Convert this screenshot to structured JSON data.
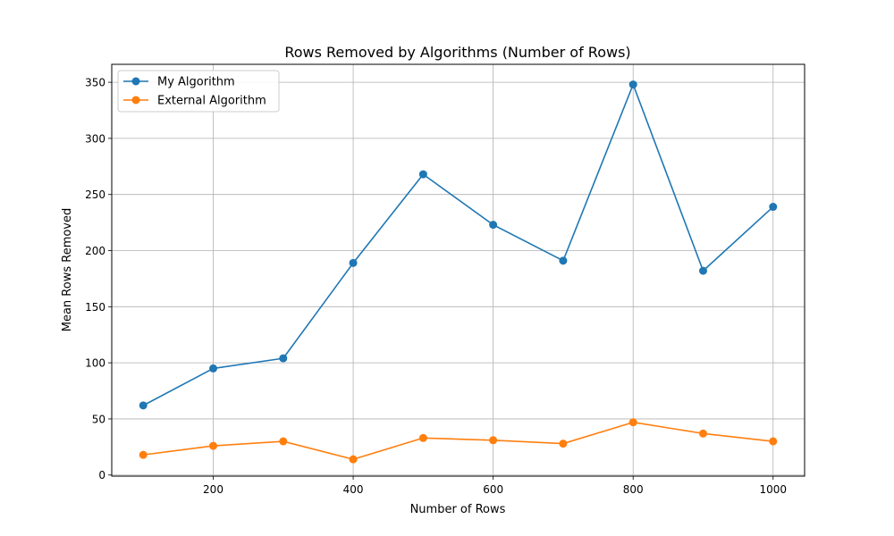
{
  "chart_data": {
    "type": "line",
    "title": "Rows Removed by Algorithms (Number of Rows)",
    "xlabel": "Number of Rows",
    "ylabel": "Mean Rows Removed",
    "x": [
      100,
      200,
      300,
      400,
      500,
      600,
      700,
      800,
      900,
      1000
    ],
    "xlim": [
      55,
      1045
    ],
    "ylim": [
      -1,
      366
    ],
    "xticks": [
      200,
      400,
      600,
      800,
      1000
    ],
    "yticks": [
      0,
      50,
      100,
      150,
      200,
      250,
      300,
      350
    ],
    "grid": true,
    "legend_position": "top-left",
    "series": [
      {
        "name": "My Algorithm",
        "color": "#1f77b4",
        "marker": "circle",
        "values": [
          62,
          95,
          104,
          189,
          268,
          223,
          191,
          348,
          182,
          239
        ]
      },
      {
        "name": "External Algorithm",
        "color": "#ff7f0e",
        "marker": "circle",
        "values": [
          18,
          26,
          30,
          14,
          33,
          31,
          28,
          47,
          37,
          30
        ]
      }
    ]
  }
}
